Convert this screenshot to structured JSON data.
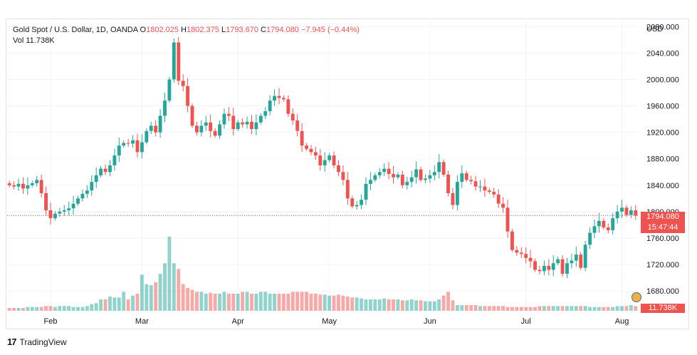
{
  "header": {
    "symbol": "Gold Spot / U.S. Dollar, 1D, OANDA",
    "o_label": "O",
    "o_value": "1802.025",
    "h_label": "H",
    "h_value": "1802.375",
    "l_label": "L",
    "l_value": "1793.670",
    "c_label": "C",
    "c_value": "1794.080",
    "change": "−7.945 (−0.44%)",
    "vol_label": "Vol",
    "vol_value": "11.738K",
    "currency": "USD"
  },
  "price_tag": {
    "price": "1794.080",
    "countdown": "15:47:44",
    "volume": "11.738K"
  },
  "footer": {
    "logo_mark": "17",
    "brand": "TradingView"
  },
  "colors": {
    "up": "#26a69a",
    "down": "#ef5350",
    "grid": "#f0f3fa",
    "axis_text": "#131722"
  },
  "chart_data": {
    "type": "candlestick",
    "ylim": [
      1650,
      2090
    ],
    "y_ticks": [
      "2080.000",
      "2040.000",
      "2000.000",
      "1960.000",
      "1920.000",
      "1880.000",
      "1840.000",
      "1800.000",
      "1760.000",
      "1720.000",
      "1680.000"
    ],
    "y_tick_values": [
      2080,
      2040,
      2000,
      1960,
      1920,
      1880,
      1840,
      1800,
      1760,
      1720,
      1680
    ],
    "x_ticks": [
      "Feb",
      "Mar",
      "Apr",
      "May",
      "Jun",
      "Jul",
      "Aug"
    ],
    "x_tick_index": [
      9,
      29,
      50,
      70,
      92,
      113,
      134
    ],
    "last_price": 1794.08,
    "closes": [
      1840,
      1838,
      1842,
      1835,
      1840,
      1843,
      1848,
      1828,
      1802,
      1790,
      1797,
      1800,
      1802,
      1805,
      1812,
      1820,
      1827,
      1832,
      1845,
      1855,
      1865,
      1860,
      1870,
      1885,
      1900,
      1904,
      1903,
      1908,
      1890,
      1905,
      1922,
      1930,
      1920,
      1945,
      1968,
      2000,
      2056,
      1998,
      1990,
      1960,
      1930,
      1920,
      1930,
      1935,
      1922,
      1915,
      1932,
      1948,
      1945,
      1925,
      1935,
      1932,
      1936,
      1925,
      1935,
      1945,
      1952,
      1968,
      1975,
      1972,
      1970,
      1948,
      1938,
      1922,
      1900,
      1895,
      1890,
      1885,
      1870,
      1878,
      1885,
      1870,
      1860,
      1848,
      1820,
      1808,
      1810,
      1818,
      1842,
      1848,
      1855,
      1860,
      1865,
      1857,
      1852,
      1856,
      1840,
      1845,
      1852,
      1864,
      1848,
      1850,
      1855,
      1860,
      1875,
      1856,
      1828,
      1810,
      1845,
      1858,
      1848,
      1846,
      1838,
      1838,
      1832,
      1830,
      1826,
      1812,
      1806,
      1770,
      1742,
      1738,
      1736,
      1730,
      1725,
      1712,
      1710,
      1718,
      1712,
      1722,
      1728,
      1706,
      1722,
      1726,
      1735,
      1715,
      1750,
      1768,
      1778,
      1786,
      1776,
      1772,
      1790,
      1800,
      1806,
      1795,
      1802,
      1794
    ],
    "volumes": [
      3,
      3,
      3,
      3,
      4,
      4,
      4,
      4,
      5,
      5,
      4,
      5,
      5,
      5,
      4,
      4,
      4,
      5,
      7,
      8,
      12,
      12,
      15,
      14,
      14,
      20,
      12,
      16,
      18,
      38,
      28,
      27,
      30,
      39,
      50,
      78,
      50,
      44,
      28,
      24,
      22,
      20,
      20,
      18,
      19,
      18,
      18,
      20,
      18,
      18,
      18,
      20,
      20,
      18,
      18,
      20,
      20,
      18,
      18,
      18,
      18,
      18,
      20,
      20,
      20,
      20,
      18,
      18,
      17,
      17,
      16,
      16,
      17,
      16,
      15,
      14,
      14,
      13,
      12,
      12,
      12,
      12,
      13,
      12,
      12,
      12,
      11,
      11,
      12,
      11,
      11,
      10,
      10,
      10,
      12,
      16,
      20,
      11,
      6,
      6,
      6,
      6,
      6,
      5,
      5,
      5,
      5,
      5,
      5,
      4,
      4,
      4,
      4,
      4,
      4,
      4,
      5,
      5,
      5,
      5,
      5,
      5,
      5,
      5,
      5,
      5,
      5,
      4,
      4,
      4,
      4,
      4,
      4,
      5,
      5,
      5,
      6,
      5
    ]
  }
}
